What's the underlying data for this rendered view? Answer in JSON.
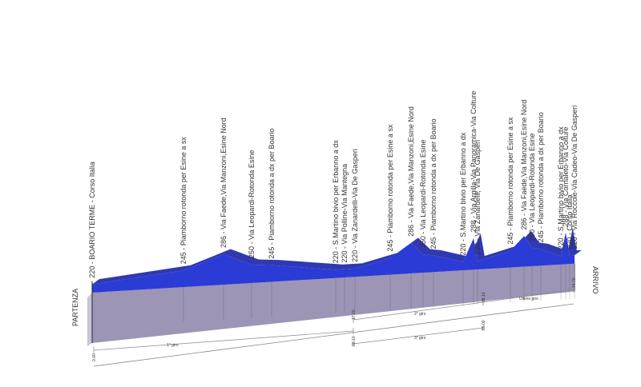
{
  "chart_data": {
    "type": "area",
    "title": "",
    "start_label": "PARTENZA",
    "finish_label": "ARRIVO",
    "colors": {
      "elevation_fill": "#2b3bd6",
      "elevation_edge": "#1a24a8",
      "base_fill": "#9d95b5",
      "base_side": "#c9c4d6",
      "guide": "#555555",
      "axis": "#888888"
    },
    "km_markers": [
      "0.00",
      "17.20",
      "26.10",
      "38.10",
      "55.00",
      "74.70"
    ],
    "laps": [
      {
        "name": "1° giro"
      },
      {
        "name": "2° giro"
      },
      {
        "name": "3° giro"
      },
      {
        "name": "Ultimo giro"
      }
    ],
    "waypoints": [
      {
        "elevation_m": 220,
        "name": "BOARIO TERME - Corso Italia",
        "label": "220 - BOARIO TERME - Corso Italia"
      },
      {
        "elevation_m": 245,
        "name": "Piamborno rotonda per Esine a sx",
        "label": "245 - Piamborno rotonda per Esine a sx"
      },
      {
        "elevation_m": 286,
        "name": "Via Faede,Via Manzoni,Esine Nord",
        "label": "286 - Via Faede,Via Manzoni,Esine Nord"
      },
      {
        "elevation_m": 250,
        "name": "Via Leopardi-Rotonda Esine",
        "label": "250 - Via Leopardi-Rotonda Esine"
      },
      {
        "elevation_m": 245,
        "name": "Piamborno rotonda a dx per Boario",
        "label": "245 - Piamborno rotonda a dx per Boario"
      },
      {
        "elevation_m": 220,
        "name": "S.Martino bivio per Erbanno a dx",
        "label": "220 - S.Martino bivio per Erbanno a dx"
      },
      {
        "elevation_m": 220,
        "name": "Via Polline-Via Mantegna",
        "label": "220 - Via Polline-Via Mantegna"
      },
      {
        "elevation_m": 220,
        "name": "Via Zanardelli-Via De Gasperi",
        "label": "220 - Via Zanardelli-Via De Gasperi"
      },
      {
        "elevation_m": 245,
        "name": "Piamborno rotonda per Esine a sx",
        "label": "245 - Piamborno rotonda per Esine a sx"
      },
      {
        "elevation_m": 286,
        "name": "Via Faede,Via Manzoni,Esine Nord",
        "label": "286 - Via Faede,Via Manzoni,Esine Nord"
      },
      {
        "elevation_m": 250,
        "name": "Via Leopardi-Rotonda Esine",
        "label": "250 - Via Leopardi-Rotonda Esine"
      },
      {
        "elevation_m": 245,
        "name": "Piamborno rotonda a dx per Boario",
        "label": "245 - Piamborno rotonda a dx per Boario"
      },
      {
        "elevation_m": 220,
        "name": "S.Martino bivio per Erbanno a dx",
        "label": "220 - S.Martino bivio per Erbanno a dx"
      },
      {
        "elevation_m": 288,
        "name": "Via Argilla-Via Panoramica-Via Colture",
        "label": "288 - Via Argilla-Via Panoramica-Via Colture"
      },
      {
        "elevation_m": 220,
        "name": "Via Zanardelli, Via De Gasperi",
        "label": "220 - Via Zanardelli, Via De Gasperi"
      },
      {
        "elevation_m": 245,
        "name": "Piamborno rotonda per Esine a sx",
        "label": "245 - Piamborno rotonda per Esine a sx"
      },
      {
        "elevation_m": 286,
        "name": "Via Faede,Via Manzoni,Esine Nord",
        "label": "286 - Via Faede,Via Manzoni,Esine Nord"
      },
      {
        "elevation_m": 250,
        "name": "Via Leopardi-Rotonda Esine",
        "label": "250 - Via Leopardi-Rotonda Esine"
      },
      {
        "elevation_m": 245,
        "name": "Piamborno rotonda a dx per Boario",
        "label": "245 - Piamborno rotonda a dx per Boario"
      },
      {
        "elevation_m": 220,
        "name": "S.Martino bivio per Erbanno a dx",
        "label": "220 - S.Martino bivio per Erbanno a dx"
      },
      {
        "elevation_m": 288,
        "name": "Via Cornaleto-Via Colture",
        "label": "288 - Via Cornaleto-Via Colture"
      },
      {
        "elevation_m": 220,
        "name": "Corso Italia",
        "label": "220 - Corso Italia"
      },
      {
        "elevation_m": 220,
        "name": "Via Roccole-Via Cadeo-Via De Gasperi",
        "label": "220 - Via Roccole-Via Cadeo-Via De Gasperi"
      }
    ]
  }
}
